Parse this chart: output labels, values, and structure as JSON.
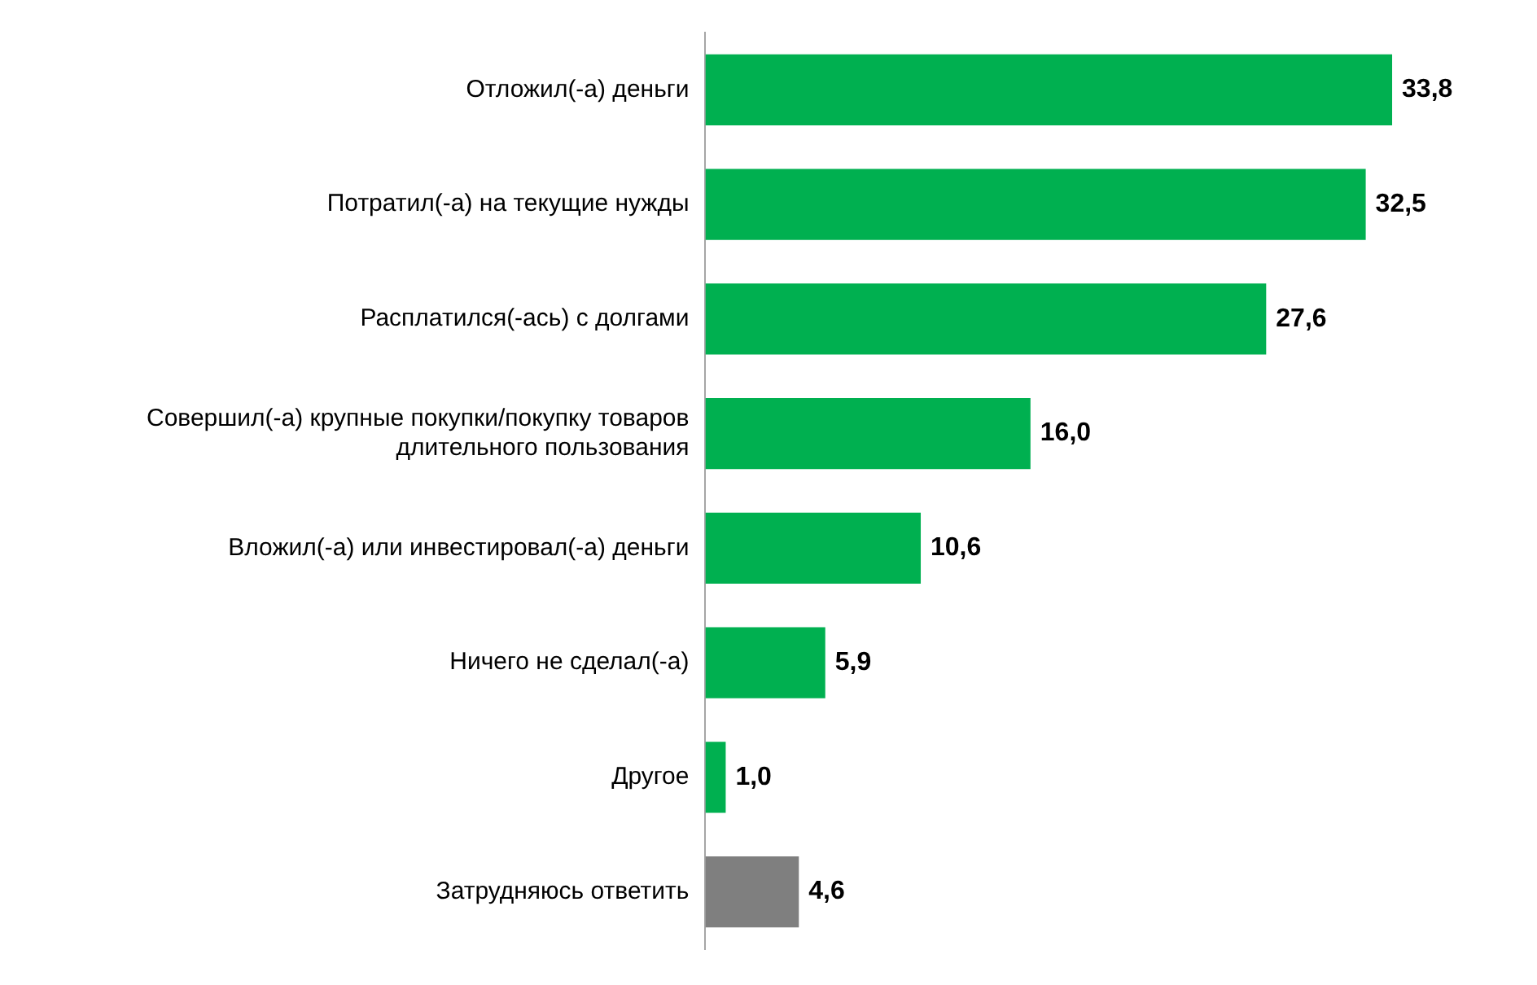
{
  "chart_data": {
    "type": "bar",
    "orientation": "horizontal",
    "categories": [
      "Отложил(-а) деньги",
      "Потратил(-а) на текущие нужды",
      "Расплатился(-ась) с долгами",
      "Совершил(-а) крупные покупки/покупку товаров длительного пользования",
      "Вложил(-а) или инвестировал(-а) деньги",
      "Ничего не сделал(-а)",
      "Другое",
      "Затрудняюсь ответить"
    ],
    "values": [
      33.8,
      32.5,
      27.6,
      16.0,
      10.6,
      5.9,
      1.0,
      4.6
    ],
    "colors": [
      "#00b050",
      "#00b050",
      "#00b050",
      "#00b050",
      "#00b050",
      "#00b050",
      "#00b050",
      "#7f7f7f"
    ],
    "value_labels": [
      "33,8",
      "32,5",
      "27,6",
      "16,0",
      "10,6",
      "5,9",
      "1,0",
      "4,6"
    ]
  }
}
